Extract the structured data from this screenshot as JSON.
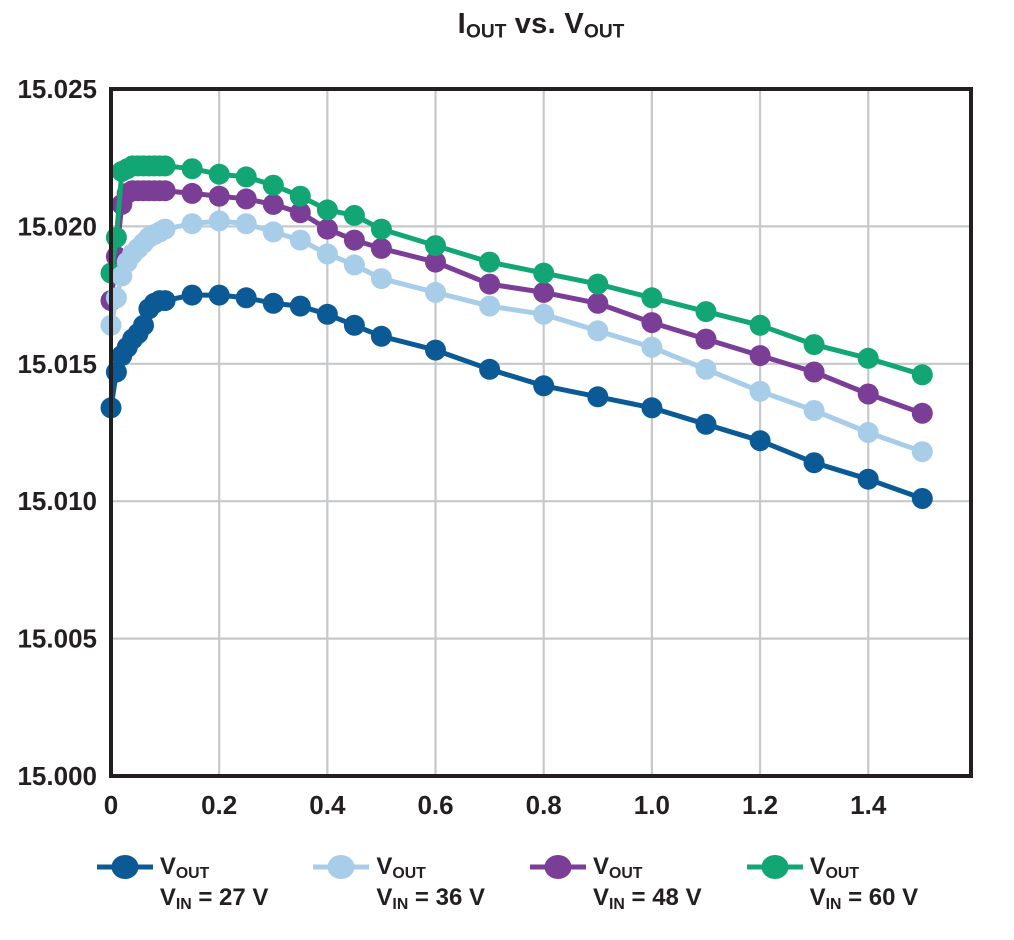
{
  "title": {
    "text": "IOUT vs. VOUT",
    "parts": [
      [
        "I",
        false
      ],
      [
        "OUT",
        true
      ],
      [
        " vs. ",
        false
      ],
      [
        "V",
        false
      ],
      [
        "OUT",
        true
      ]
    ]
  },
  "colors": {
    "background": "#ffffff",
    "axis_box": "#231f20",
    "tick_text": "#231f20",
    "gridline": "#c6c8ca",
    "vin27": "#0c5a95",
    "vin36": "#a7cde9",
    "vin48": "#7b3e97",
    "vin60": "#12a674"
  },
  "axes": {
    "x_tick_labels": [
      "0",
      "0.2",
      "0.4",
      "0.6",
      "0.8",
      "1.0",
      "1.2",
      "1.4"
    ],
    "x_tick_values": [
      0,
      0.2,
      0.4,
      0.6,
      0.8,
      1.0,
      1.2,
      1.4
    ],
    "y_tick_labels": [
      "15.000",
      "15.005",
      "15.010",
      "15.015",
      "15.020",
      "15.025"
    ],
    "y_tick_values": [
      15.0,
      15.005,
      15.01,
      15.015,
      15.02,
      15.025
    ],
    "grid": "on"
  },
  "legend": {
    "items": [
      {
        "series": "vin27",
        "color": "#0c5a95",
        "top_text": "VOUT",
        "bottom_text": "VIN = 27 V",
        "top_parts": [
          [
            "V",
            false
          ],
          [
            "OUT",
            true
          ]
        ],
        "bottom_parts": [
          [
            "V",
            false
          ],
          [
            "IN",
            true
          ],
          [
            " = 27 V",
            false
          ]
        ]
      },
      {
        "series": "vin36",
        "color": "#a7cde9",
        "top_text": "VOUT",
        "bottom_text": "VIN = 36 V",
        "top_parts": [
          [
            "V",
            false
          ],
          [
            "OUT",
            true
          ]
        ],
        "bottom_parts": [
          [
            "V",
            false
          ],
          [
            "IN",
            true
          ],
          [
            " = 36 V",
            false
          ]
        ]
      },
      {
        "series": "vin48",
        "color": "#7b3e97",
        "top_text": "VOUT",
        "bottom_text": "VIN = 48 V",
        "top_parts": [
          [
            "V",
            false
          ],
          [
            "OUT",
            true
          ]
        ],
        "bottom_parts": [
          [
            "V",
            false
          ],
          [
            "IN",
            true
          ],
          [
            " = 48 V",
            false
          ]
        ]
      },
      {
        "series": "vin60",
        "color": "#12a674",
        "top_text": "VOUT",
        "bottom_text": "VIN = 60 V",
        "top_parts": [
          [
            "V",
            false
          ],
          [
            "OUT",
            true
          ]
        ],
        "bottom_parts": [
          [
            "V",
            false
          ],
          [
            "IN",
            true
          ],
          [
            " = 60 V",
            false
          ]
        ]
      }
    ]
  },
  "chart_data": {
    "type": "line",
    "title": "IOUT vs. VOUT",
    "xlabel": "",
    "ylabel": "",
    "xlim": [
      0,
      1.59
    ],
    "ylim": [
      15.0,
      15.025
    ],
    "x_ticks": [
      0,
      0.2,
      0.4,
      0.6,
      0.8,
      1.0,
      1.2,
      1.4
    ],
    "y_ticks": [
      15.0,
      15.005,
      15.01,
      15.015,
      15.02,
      15.025
    ],
    "grid": true,
    "legend_position": "bottom",
    "marker": "circle",
    "x": [
      0,
      0.01,
      0.02,
      0.03,
      0.04,
      0.05,
      0.06,
      0.07,
      0.08,
      0.09,
      0.1,
      0.15,
      0.2,
      0.25,
      0.3,
      0.35,
      0.4,
      0.45,
      0.5,
      0.6,
      0.7,
      0.8,
      0.9,
      1.0,
      1.1,
      1.2,
      1.3,
      1.4,
      1.5
    ],
    "series": [
      {
        "name": "VOUT VIN = 27 V",
        "color": "#0c5a95",
        "values": [
          15.0134,
          15.0147,
          15.0153,
          15.0156,
          15.0159,
          15.0161,
          15.0164,
          15.017,
          15.0172,
          15.0173,
          15.0173,
          15.0175,
          15.0175,
          15.0174,
          15.0172,
          15.0171,
          15.0168,
          15.0164,
          15.016,
          15.0155,
          15.0148,
          15.0142,
          15.0138,
          15.0134,
          15.0128,
          15.0122,
          15.0114,
          15.0108,
          15.0101
        ]
      },
      {
        "name": "VOUT VIN = 36 V",
        "color": "#a7cde9",
        "values": [
          15.0164,
          15.0174,
          15.0182,
          15.0187,
          15.019,
          15.0192,
          15.0194,
          15.0196,
          15.0197,
          15.0198,
          15.0199,
          15.0201,
          15.0202,
          15.0201,
          15.0198,
          15.0195,
          15.019,
          15.0186,
          15.0181,
          15.0176,
          15.0171,
          15.0168,
          15.0162,
          15.0156,
          15.0148,
          15.014,
          15.0133,
          15.0125,
          15.0118
        ]
      },
      {
        "name": "VOUT VIN = 48 V",
        "color": "#7b3e97",
        "values": [
          15.0173,
          15.0189,
          15.0208,
          15.0212,
          15.0213,
          15.0213,
          15.0213,
          15.0213,
          15.0213,
          15.0213,
          15.0213,
          15.0212,
          15.0211,
          15.021,
          15.0208,
          15.0205,
          15.0199,
          15.0195,
          15.0192,
          15.0187,
          15.0179,
          15.0176,
          15.0172,
          15.0165,
          15.0159,
          15.0153,
          15.0147,
          15.0139,
          15.0132
        ]
      },
      {
        "name": "VOUT VIN = 60 V",
        "color": "#12a674",
        "values": [
          15.0183,
          15.0196,
          15.022,
          15.0221,
          15.0222,
          15.0222,
          15.0222,
          15.0222,
          15.0222,
          15.0222,
          15.0222,
          15.0221,
          15.0219,
          15.0218,
          15.0215,
          15.0211,
          15.0206,
          15.0204,
          15.0199,
          15.0193,
          15.0187,
          15.0183,
          15.0179,
          15.0174,
          15.0169,
          15.0164,
          15.0157,
          15.0152,
          15.0146
        ]
      }
    ]
  }
}
